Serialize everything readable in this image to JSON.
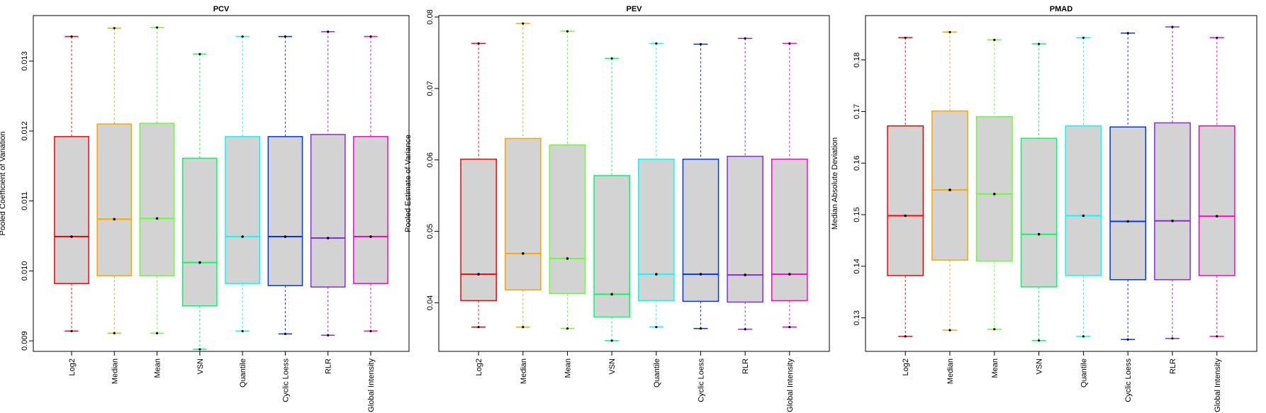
{
  "chart_data": [
    {
      "type": "box",
      "title": "PCV",
      "ylabel": "Pooled Coefficient of Variation",
      "xlabel": "",
      "ylim": [
        0.00885,
        0.01365
      ],
      "yticks": [
        0.009,
        0.01,
        0.011,
        0.012,
        0.013
      ],
      "ytick_labels": [
        "0.009",
        "0.010",
        "0.011",
        "0.012",
        "0.013"
      ],
      "categories": [
        "Log2",
        "Median",
        "Mean",
        "VSN",
        "Quantile",
        "Cyclic Loess",
        "RLR",
        "Global Intensity"
      ],
      "colors": [
        "#ff0000",
        "#ffa500",
        "#66ff33",
        "#00ff66",
        "#00ffff",
        "#0033ff",
        "#8a2be2",
        "#ff00cc"
      ],
      "boxes": [
        {
          "min": 0.00914,
          "q1": 0.00982,
          "median": 0.01049,
          "q3": 0.01192,
          "max": 0.01335
        },
        {
          "min": 0.00911,
          "q1": 0.00993,
          "median": 0.01074,
          "q3": 0.0121,
          "max": 0.01347
        },
        {
          "min": 0.00911,
          "q1": 0.00993,
          "median": 0.01075,
          "q3": 0.01211,
          "max": 0.01348
        },
        {
          "min": 0.00888,
          "q1": 0.0095,
          "median": 0.01012,
          "q3": 0.01161,
          "max": 0.0131
        },
        {
          "min": 0.00914,
          "q1": 0.00982,
          "median": 0.01049,
          "q3": 0.01192,
          "max": 0.01335
        },
        {
          "min": 0.0091,
          "q1": 0.00979,
          "median": 0.01049,
          "q3": 0.01192,
          "max": 0.01335
        },
        {
          "min": 0.00908,
          "q1": 0.00977,
          "median": 0.01047,
          "q3": 0.01195,
          "max": 0.01342
        },
        {
          "min": 0.00914,
          "q1": 0.00982,
          "median": 0.01049,
          "q3": 0.01192,
          "max": 0.01335
        }
      ]
    },
    {
      "type": "box",
      "title": "PEV",
      "ylabel": "Pooled Estimate of Variance",
      "xlabel": "",
      "ylim": [
        0.0332,
        0.0802
      ],
      "yticks": [
        0.04,
        0.05,
        0.06,
        0.07,
        0.08
      ],
      "ytick_labels": [
        "0.04",
        "0.05",
        "0.06",
        "0.07",
        "0.08"
      ],
      "categories": [
        "Log2",
        "Median",
        "Mean",
        "VSN",
        "Quantile",
        "Cyclic Loess",
        "RLR",
        "Global Intensity"
      ],
      "colors": [
        "#ff0000",
        "#ffa500",
        "#66ff33",
        "#00ff66",
        "#00ffff",
        "#0033ff",
        "#8a2be2",
        "#ff00cc"
      ],
      "boxes": [
        {
          "min": 0.0366,
          "q1": 0.0403,
          "median": 0.044,
          "q3": 0.0601,
          "max": 0.0763
        },
        {
          "min": 0.0366,
          "q1": 0.0418,
          "median": 0.0469,
          "q3": 0.063,
          "max": 0.0791
        },
        {
          "min": 0.0364,
          "q1": 0.0413,
          "median": 0.0462,
          "q3": 0.0621,
          "max": 0.078
        },
        {
          "min": 0.0347,
          "q1": 0.038,
          "median": 0.0412,
          "q3": 0.0578,
          "max": 0.0742
        },
        {
          "min": 0.0366,
          "q1": 0.0403,
          "median": 0.044,
          "q3": 0.0601,
          "max": 0.0763
        },
        {
          "min": 0.0364,
          "q1": 0.0402,
          "median": 0.044,
          "q3": 0.0601,
          "max": 0.0762
        },
        {
          "min": 0.0363,
          "q1": 0.0401,
          "median": 0.0439,
          "q3": 0.0605,
          "max": 0.077
        },
        {
          "min": 0.0366,
          "q1": 0.0403,
          "median": 0.044,
          "q3": 0.0601,
          "max": 0.0763
        }
      ]
    },
    {
      "type": "box",
      "title": "PMAD",
      "ylabel": "Median Absolute Deviation",
      "xlabel": "",
      "ylim": [
        0.1235,
        0.1886
      ],
      "yticks": [
        0.13,
        0.14,
        0.15,
        0.16,
        0.17,
        0.18
      ],
      "ytick_labels": [
        "0.13",
        "0.14",
        "0.15",
        "0.16",
        "0.17",
        "0.18"
      ],
      "categories": [
        "Log2",
        "Median",
        "Mean",
        "VSN",
        "Quantile",
        "Cyclic Loess",
        "RLR",
        "Global Intensity"
      ],
      "colors": [
        "#ff0000",
        "#ffa500",
        "#66ff33",
        "#00ff66",
        "#00ffff",
        "#0033ff",
        "#8a2be2",
        "#ff00cc"
      ],
      "boxes": [
        {
          "min": 0.1264,
          "q1": 0.1382,
          "median": 0.1498,
          "q3": 0.1672,
          "max": 0.1843
        },
        {
          "min": 0.1276,
          "q1": 0.1412,
          "median": 0.1548,
          "q3": 0.1701,
          "max": 0.1854
        },
        {
          "min": 0.1278,
          "q1": 0.141,
          "median": 0.154,
          "q3": 0.169,
          "max": 0.1839
        },
        {
          "min": 0.1256,
          "q1": 0.136,
          "median": 0.1462,
          "q3": 0.1648,
          "max": 0.1831
        },
        {
          "min": 0.1264,
          "q1": 0.1382,
          "median": 0.1498,
          "q3": 0.1672,
          "max": 0.1843
        },
        {
          "min": 0.1258,
          "q1": 0.1374,
          "median": 0.1487,
          "q3": 0.167,
          "max": 0.1852
        },
        {
          "min": 0.126,
          "q1": 0.1374,
          "median": 0.1488,
          "q3": 0.1678,
          "max": 0.1864
        },
        {
          "min": 0.1264,
          "q1": 0.1382,
          "median": 0.1497,
          "q3": 0.1672,
          "max": 0.1843
        }
      ]
    }
  ]
}
